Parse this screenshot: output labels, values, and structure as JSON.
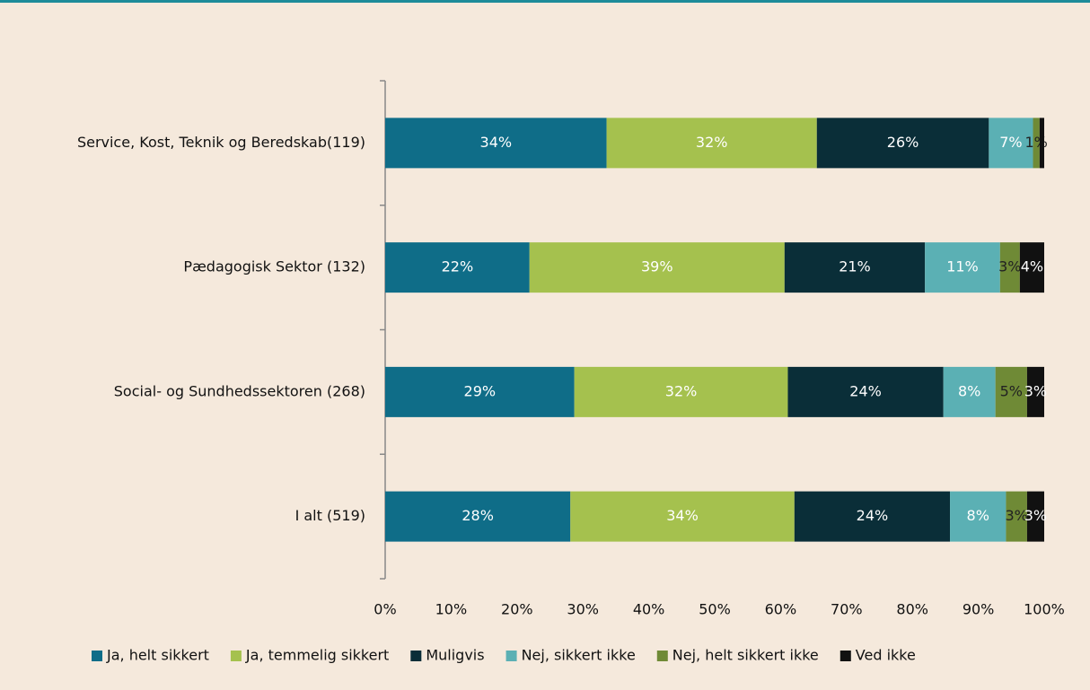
{
  "chart_data": {
    "type": "stacked_bar_horizontal",
    "categories": [
      "Service, Kost, Teknik og Beredskab(119)",
      "Pædagogisk Sektor (132)",
      "Social- og Sundhedssektoren (268)",
      "I alt (519)"
    ],
    "series": [
      {
        "name": "Ja, helt sikkert",
        "color": "#0f6d88",
        "values": [
          33.6,
          21.9,
          28.7,
          28.1
        ],
        "value_labels": [
          "34%",
          "22%",
          "29%",
          "28%"
        ]
      },
      {
        "name": "Ja, temmelig sikkert",
        "color": "#a5c14e",
        "values": [
          31.9,
          38.7,
          32.4,
          34.0
        ],
        "value_labels": [
          "32%",
          "39%",
          "32%",
          "34%"
        ]
      },
      {
        "name": "Muligvis",
        "color": "#0a2e38",
        "values": [
          26.1,
          21.3,
          23.6,
          23.6
        ],
        "value_labels": [
          "26%",
          "21%",
          "24%",
          "24%"
        ]
      },
      {
        "name": "Nej, sikkert ikke",
        "color": "#5bb0b4",
        "values": [
          6.7,
          11.4,
          7.9,
          8.5
        ],
        "value_labels": [
          "7%",
          "11%",
          "8%",
          "8%"
        ]
      },
      {
        "name": "Nej, helt sikkert ikke",
        "color": "#6f8a36",
        "values": [
          1.0,
          3.0,
          4.8,
          3.2
        ],
        "value_labels": [
          "1%",
          "3%",
          "5%",
          "3%"
        ]
      },
      {
        "name": "Ved ikke",
        "color": "#111111",
        "values": [
          0.7,
          3.7,
          2.6,
          2.6
        ],
        "value_labels": [
          null,
          "4%",
          "3%",
          "3%"
        ]
      }
    ],
    "xlim": [
      0,
      100
    ],
    "xticks": [
      {
        "value": 0,
        "label": "0%"
      },
      {
        "value": 10,
        "label": "10%"
      },
      {
        "value": 20,
        "label": "20%"
      },
      {
        "value": 30,
        "label": "30%"
      },
      {
        "value": 40,
        "label": "40%"
      },
      {
        "value": 50,
        "label": "50%"
      },
      {
        "value": 60,
        "label": "60%"
      },
      {
        "value": 70,
        "label": "70%"
      },
      {
        "value": 80,
        "label": "80%"
      },
      {
        "value": 90,
        "label": "90%"
      },
      {
        "value": 100,
        "label": "100%"
      }
    ],
    "legend": "bottom"
  }
}
